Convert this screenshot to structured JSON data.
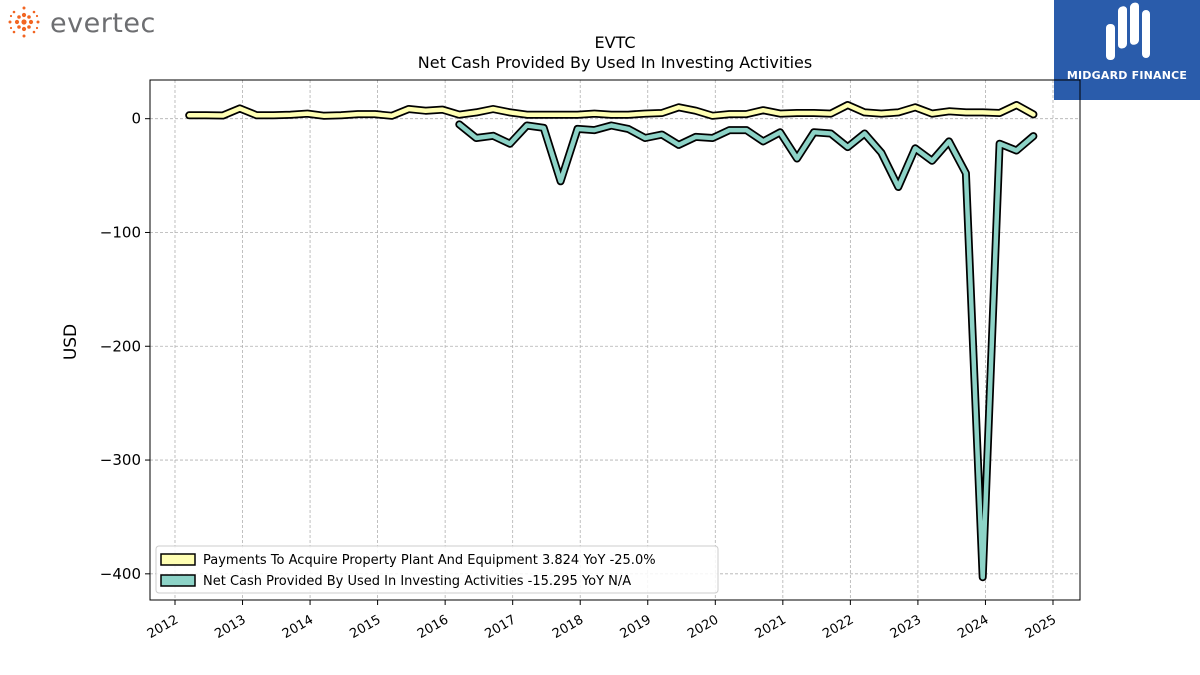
{
  "brand": {
    "left_logo_text": "evertec",
    "right_logo_text": "MIDGARD FINANCE",
    "left_logo_color": "#6d6e71",
    "left_logo_dot_color": "#f26522",
    "right_logo_bg": "#2a5cab"
  },
  "chart_data": {
    "type": "line",
    "title": "EVTC",
    "subtitle": "Net Cash Provided By Used In Investing Activities",
    "ylabel": "USD",
    "xlabel": "",
    "xlim": [
      2011.63,
      2025.4
    ],
    "ylim": [
      -423,
      34
    ],
    "yticks": [
      0,
      -100,
      -200,
      -300,
      -400
    ],
    "ytick_labels": [
      "0",
      "−100",
      "−200",
      "−300",
      "−400"
    ],
    "xticks": [
      2012,
      2013,
      2014,
      2015,
      2016,
      2017,
      2018,
      2019,
      2020,
      2021,
      2022,
      2023,
      2024,
      2025
    ],
    "xtick_labels": [
      "2012",
      "2013",
      "2014",
      "2015",
      "2016",
      "2017",
      "2018",
      "2019",
      "2020",
      "2021",
      "2022",
      "2023",
      "2024",
      "2025"
    ],
    "grid": true,
    "legend_position": "lower-left",
    "series": [
      {
        "name": "Payments To Acquire Property Plant And Equipment",
        "legend_label": "Payments To Acquire Property Plant And Equipment  3.824 YoY -25.0%",
        "color": "#ffffb3",
        "x": [
          2012.21,
          2012.46,
          2012.71,
          2012.96,
          2013.21,
          2013.46,
          2013.71,
          2013.96,
          2014.21,
          2014.46,
          2014.71,
          2014.96,
          2015.21,
          2015.46,
          2015.71,
          2015.96,
          2016.21,
          2016.46,
          2016.71,
          2016.96,
          2017.21,
          2017.46,
          2017.71,
          2017.96,
          2018.21,
          2018.46,
          2018.71,
          2018.96,
          2019.21,
          2019.46,
          2019.71,
          2019.96,
          2020.21,
          2020.46,
          2020.71,
          2020.96,
          2021.21,
          2021.46,
          2021.71,
          2021.96,
          2022.21,
          2022.46,
          2022.71,
          2022.96,
          2023.21,
          2023.46,
          2023.71,
          2023.96,
          2024.21,
          2024.46,
          2024.71
        ],
        "values": [
          3.0,
          3.0,
          2.8,
          9.0,
          3.0,
          3.0,
          3.5,
          4.5,
          2.5,
          3.0,
          4.0,
          4.0,
          2.5,
          8.5,
          7.0,
          8.0,
          3.5,
          5.5,
          8.5,
          5.5,
          3.5,
          3.5,
          3.5,
          3.5,
          4.5,
          3.5,
          3.5,
          4.5,
          5.0,
          10.0,
          7.0,
          2.5,
          4.0,
          4.0,
          7.5,
          4.5,
          5.0,
          5.0,
          4.5,
          12.0,
          5.5,
          4.5,
          5.5,
          10.0,
          4.5,
          6.5,
          5.5,
          5.5,
          5.0,
          12.0,
          3.8
        ]
      },
      {
        "name": "Net Cash Provided By Used In Investing Activities",
        "legend_label": "Net Cash Provided By Used In Investing Activities  -15.295 YoY N/A",
        "color": "#8dd3c7",
        "x": [
          2016.21,
          2016.46,
          2016.71,
          2016.96,
          2017.21,
          2017.46,
          2017.71,
          2017.96,
          2018.21,
          2018.46,
          2018.71,
          2018.96,
          2019.21,
          2019.46,
          2019.71,
          2019.96,
          2020.21,
          2020.46,
          2020.71,
          2020.96,
          2021.21,
          2021.46,
          2021.71,
          2021.96,
          2022.21,
          2022.46,
          2022.71,
          2022.96,
          2023.21,
          2023.46,
          2023.71,
          2023.96,
          2024.21,
          2024.46,
          2024.71
        ],
        "values": [
          -5.0,
          -17.0,
          -15.0,
          -22.0,
          -6.0,
          -8.0,
          -55.0,
          -9.0,
          -10.0,
          -6.0,
          -9.0,
          -17.0,
          -14.0,
          -23.0,
          -16.0,
          -17.0,
          -10.0,
          -10.0,
          -20.0,
          -12.0,
          -35.0,
          -12.0,
          -13.0,
          -25.0,
          -13.0,
          -30.0,
          -60.0,
          -26.0,
          -37.0,
          -20.0,
          -48.0,
          -403.0,
          -22.0,
          -28.0,
          -15.3
        ]
      }
    ]
  }
}
